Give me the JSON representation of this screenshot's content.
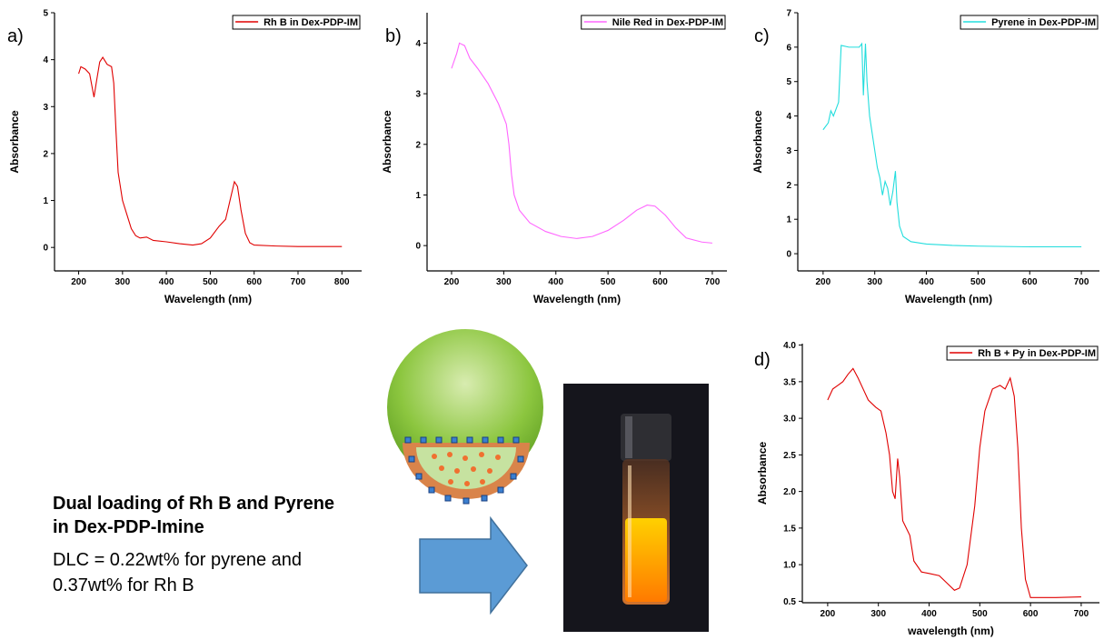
{
  "chart_data": [
    {
      "type": "line",
      "panel_label": "a)",
      "xlabel": "Wavelength (nm)",
      "ylabel": "Absorbance",
      "legend": "upper right",
      "xlim": [
        145,
        845
      ],
      "ylim": [
        -0.5,
        5
      ],
      "xticks": [
        200,
        300,
        400,
        500,
        600,
        700,
        800
      ],
      "yticks": [
        0,
        1,
        2,
        3,
        4,
        5
      ],
      "x": [
        200,
        205,
        215,
        225,
        235,
        240,
        248,
        255,
        265,
        275,
        280,
        285,
        290,
        300,
        310,
        320,
        330,
        340,
        355,
        370,
        400,
        430,
        460,
        480,
        500,
        520,
        535,
        545,
        555,
        562,
        570,
        580,
        590,
        600,
        650,
        700,
        800
      ],
      "series": [
        {
          "name": "Rh B in Dex-PDP-IM",
          "color": "#e00000",
          "values": [
            3.7,
            3.85,
            3.8,
            3.7,
            3.2,
            3.5,
            3.95,
            4.05,
            3.9,
            3.85,
            3.5,
            2.5,
            1.6,
            1.0,
            0.7,
            0.4,
            0.25,
            0.2,
            0.22,
            0.15,
            0.12,
            0.08,
            0.05,
            0.08,
            0.2,
            0.45,
            0.6,
            1.0,
            1.4,
            1.3,
            0.8,
            0.3,
            0.1,
            0.05,
            0.03,
            0.02,
            0.02
          ]
        }
      ]
    },
    {
      "type": "line",
      "panel_label": "b)",
      "xlabel": "Wavelength (nm)",
      "ylabel": "Absorbance",
      "legend": "upper right",
      "xlim": [
        153,
        728
      ],
      "ylim": [
        -0.5,
        4.6
      ],
      "xticks": [
        200,
        300,
        400,
        500,
        600,
        700
      ],
      "yticks": [
        0,
        1,
        2,
        3,
        4
      ],
      "x": [
        200,
        210,
        215,
        225,
        235,
        250,
        270,
        290,
        305,
        310,
        315,
        320,
        330,
        350,
        380,
        410,
        440,
        470,
        500,
        530,
        555,
        575,
        590,
        610,
        630,
        650,
        680,
        700
      ],
      "series": [
        {
          "name": "Nile Red in Dex-PDP-IM",
          "color": "#ff66ff",
          "values": [
            3.5,
            3.8,
            4.0,
            3.95,
            3.7,
            3.5,
            3.2,
            2.8,
            2.4,
            2.0,
            1.4,
            1.0,
            0.7,
            0.45,
            0.28,
            0.18,
            0.14,
            0.18,
            0.3,
            0.5,
            0.7,
            0.8,
            0.78,
            0.6,
            0.35,
            0.15,
            0.07,
            0.05
          ]
        }
      ]
    },
    {
      "type": "line",
      "panel_label": "c)",
      "xlabel": "Wavelength (nm)",
      "ylabel": "Absorbance",
      "legend": "upper right",
      "xlim": [
        151,
        735
      ],
      "ylim": [
        -0.5,
        7
      ],
      "xticks": [
        200,
        300,
        400,
        500,
        600,
        700
      ],
      "yticks": [
        0,
        1,
        2,
        3,
        4,
        5,
        6,
        7
      ],
      "x": [
        200,
        210,
        215,
        220,
        225,
        230,
        235,
        250,
        270,
        275,
        278,
        282,
        285,
        290,
        295,
        300,
        305,
        310,
        315,
        320,
        325,
        330,
        335,
        340,
        343,
        348,
        355,
        370,
        400,
        450,
        500,
        600,
        700
      ],
      "series": [
        {
          "name": "Pyrene in Dex-PDP-IM",
          "color": "#22dddd",
          "values": [
            3.6,
            3.8,
            4.15,
            4.0,
            4.2,
            4.4,
            6.05,
            6.0,
            6.0,
            6.1,
            4.6,
            6.1,
            5.0,
            4.0,
            3.5,
            3.0,
            2.5,
            2.2,
            1.7,
            2.1,
            1.9,
            1.4,
            1.8,
            2.4,
            1.5,
            0.8,
            0.5,
            0.35,
            0.28,
            0.24,
            0.22,
            0.2,
            0.2
          ]
        }
      ]
    },
    {
      "type": "line",
      "panel_label": "d)",
      "xlabel": "wavelength (nm)",
      "ylabel": "Absorbance",
      "legend": "upper right",
      "xlim": [
        150,
        736
      ],
      "ylim": [
        0.48,
        4.02
      ],
      "xticks": [
        200,
        300,
        400,
        500,
        600,
        700
      ],
      "yticks": [
        0.5,
        {
          "value": 1,
          "label": "1.0"
        },
        1.5,
        {
          "value": 2,
          "label": "2.0"
        },
        2.5,
        {
          "value": 3,
          "label": "3.0"
        },
        3.5,
        {
          "value": 4,
          "label": "4.0"
        }
      ],
      "x": [
        200,
        210,
        220,
        230,
        240,
        250,
        260,
        270,
        280,
        295,
        305,
        315,
        322,
        328,
        333,
        338,
        342,
        348,
        355,
        362,
        370,
        385,
        400,
        420,
        435,
        450,
        460,
        475,
        490,
        500,
        510,
        525,
        540,
        550,
        560,
        568,
        575,
        582,
        590,
        600,
        650,
        700
      ],
      "series": [
        {
          "name": "Rh B + Py in Dex-PDP-IM",
          "color": "#e00000",
          "values": [
            3.25,
            3.4,
            3.45,
            3.5,
            3.6,
            3.68,
            3.55,
            3.4,
            3.25,
            3.15,
            3.1,
            2.8,
            2.5,
            2.0,
            1.9,
            2.45,
            2.2,
            1.6,
            1.5,
            1.4,
            1.05,
            0.9,
            0.88,
            0.85,
            0.75,
            0.65,
            0.68,
            1.0,
            1.8,
            2.6,
            3.1,
            3.4,
            3.45,
            3.4,
            3.55,
            3.3,
            2.6,
            1.5,
            0.8,
            0.55,
            0.55,
            0.56
          ]
        }
      ]
    }
  ],
  "caption": {
    "title": [
      "Dual loading of Rh B and Pyrene",
      "in Dex-PDP-Imine"
    ],
    "body": [
      "DLC = 0.22wt% for pyrene and",
      "0.37wt% for Rh B"
    ]
  }
}
